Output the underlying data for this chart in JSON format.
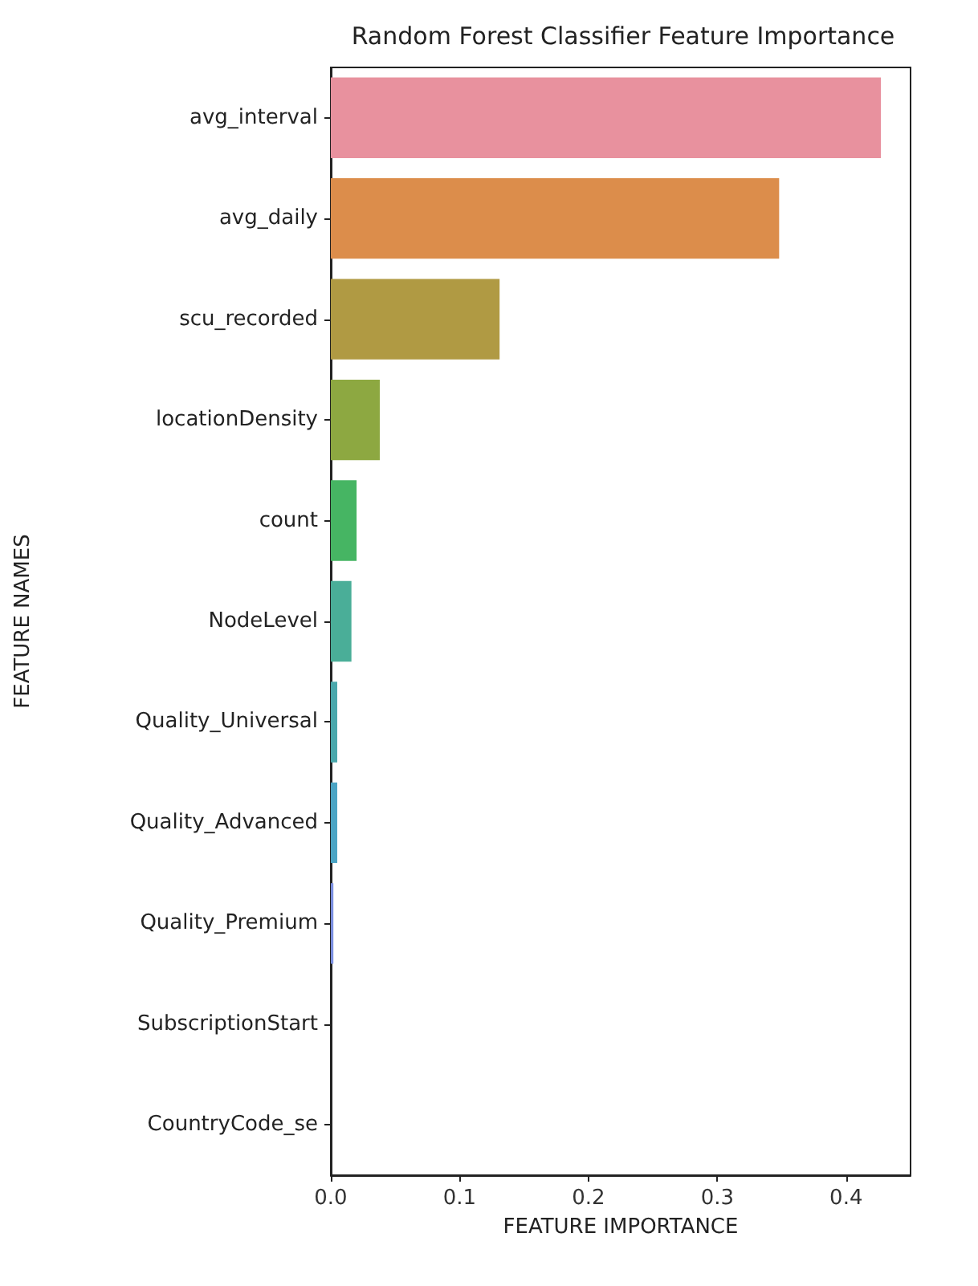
{
  "chart_data": {
    "type": "bar",
    "orientation": "horizontal",
    "title": "Random Forest Classifier Feature Importance",
    "xlabel": "FEATURE IMPORTANCE",
    "ylabel": "FEATURE NAMES",
    "categories": [
      "avg_interval",
      "avg_daily",
      "scu_recorded",
      "locationDensity",
      "count",
      "NodeLevel",
      "Quality_Universal",
      "Quality_Advanced",
      "Quality_Premium",
      "SubscriptionStart",
      "CountryCode_se"
    ],
    "values": [
      0.427,
      0.348,
      0.131,
      0.038,
      0.02,
      0.016,
      0.005,
      0.005,
      0.002,
      0,
      0
    ],
    "colors": [
      "#e8919e",
      "#dc8d4b",
      "#b09a43",
      "#8da841",
      "#46b563",
      "#4aae98",
      "#4aa8ac",
      "#4ba4c4",
      "#7b8fe0",
      "#b48ae0",
      "#e08fcf"
    ],
    "xlim": [
      0,
      0.45
    ],
    "xticks": [
      {
        "value": 0,
        "label": "0.0"
      },
      0.1,
      0.2,
      0.3,
      0.4
    ],
    "grid": false
  }
}
